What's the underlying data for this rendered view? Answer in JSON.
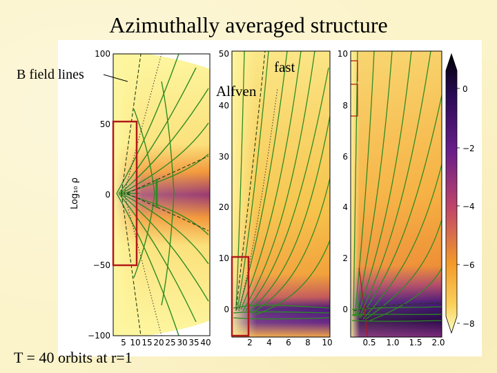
{
  "slide": {
    "title": "Azimuthally averaged structure",
    "labels": {
      "bfield": "B field lines",
      "fast": "fast",
      "alfven": "Alfven",
      "time": "T = 40 orbits at r=1"
    }
  },
  "figure": {
    "panel1": {
      "y_axis_label": "Log₁₀ ρ",
      "y_ticks": [
        "100",
        "50",
        "0",
        "−50",
        "−100"
      ],
      "x_ticks": [
        "5",
        "10",
        "15",
        "20",
        "25",
        "30",
        "35",
        "40"
      ]
    },
    "panel2": {
      "y_ticks": [
        "50",
        "40",
        "30",
        "20",
        "10",
        "0"
      ],
      "x_ticks": [
        "2",
        "4",
        "6",
        "8",
        "10"
      ]
    },
    "panel3": {
      "y_ticks": [
        "10",
        "8",
        "6",
        "4",
        "2",
        "0"
      ],
      "x_ticks": [
        "0.5",
        "1.0",
        "1.5",
        "2.0"
      ]
    },
    "colorbar": {
      "ticks": [
        "0",
        "−2",
        "−4",
        "−6",
        "−8"
      ]
    },
    "colors": {
      "field_lines": "#2e8b22",
      "highlight_box": "#b01818",
      "colormap": [
        "#fdf6a0",
        "#f7b22b",
        "#e8743a",
        "#b04a6a",
        "#5a1a86",
        "#0a0018"
      ]
    }
  }
}
